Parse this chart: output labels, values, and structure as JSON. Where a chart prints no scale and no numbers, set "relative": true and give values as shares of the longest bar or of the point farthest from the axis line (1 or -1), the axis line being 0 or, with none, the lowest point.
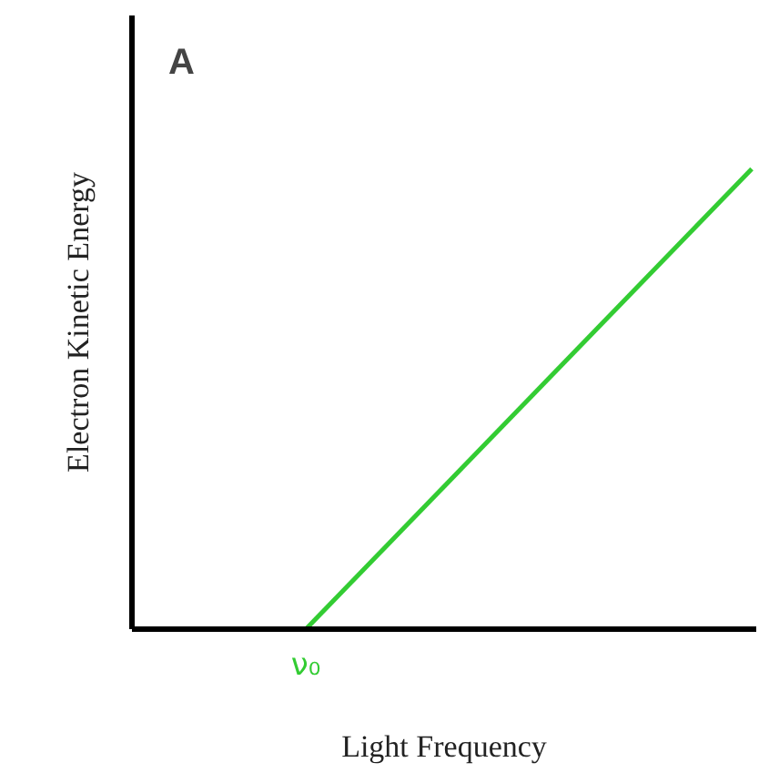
{
  "chart_data": {
    "type": "line",
    "title": "A",
    "xlabel": "Light Frequency",
    "ylabel": "Electron Kinetic Energy",
    "relative": true,
    "categories": [
      null,
      null
    ],
    "series": [
      {
        "color": "#33cc33",
        "values": [
          0,
          1
        ]
      }
    ],
    "annotations": [
      "ν₀"
    ],
    "marker": "none",
    "line_style": "solid"
  }
}
